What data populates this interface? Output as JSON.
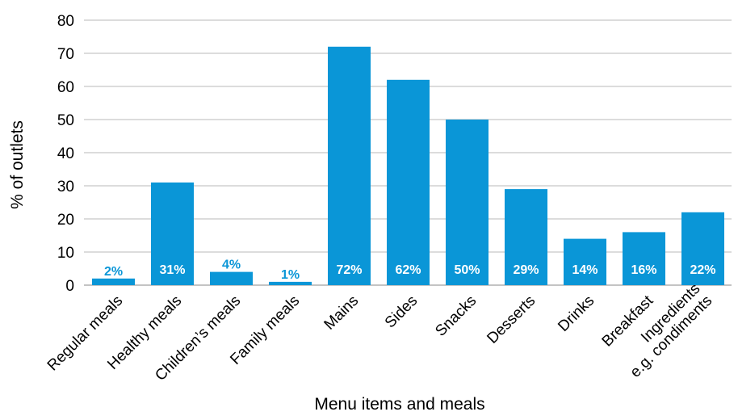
{
  "chart_data": {
    "type": "bar",
    "title": "",
    "xlabel": "Menu items and meals",
    "ylabel": "% of outlets",
    "ylim": [
      0,
      80
    ],
    "yticks": [
      0,
      10,
      20,
      30,
      40,
      50,
      60,
      70,
      80
    ],
    "grid": true,
    "legend": "none",
    "bar_color": "#0a96d7",
    "categories": [
      [
        "Regular meals"
      ],
      [
        "Healthy meals"
      ],
      [
        "Children’s meals"
      ],
      [
        "Family meals"
      ],
      [
        "Mains"
      ],
      [
        "Sides"
      ],
      [
        "Snacks"
      ],
      [
        "Desserts"
      ],
      [
        "Drinks"
      ],
      [
        "Breakfast"
      ],
      [
        "Ingredients",
        "e.g. condiments"
      ]
    ],
    "values": [
      2,
      31,
      4,
      1,
      72,
      62,
      50,
      29,
      14,
      16,
      22
    ],
    "data_labels": [
      "2%",
      "31%",
      "4%",
      "1%",
      "72%",
      "62%",
      "50%",
      "29%",
      "14%",
      "16%",
      "22%"
    ]
  }
}
